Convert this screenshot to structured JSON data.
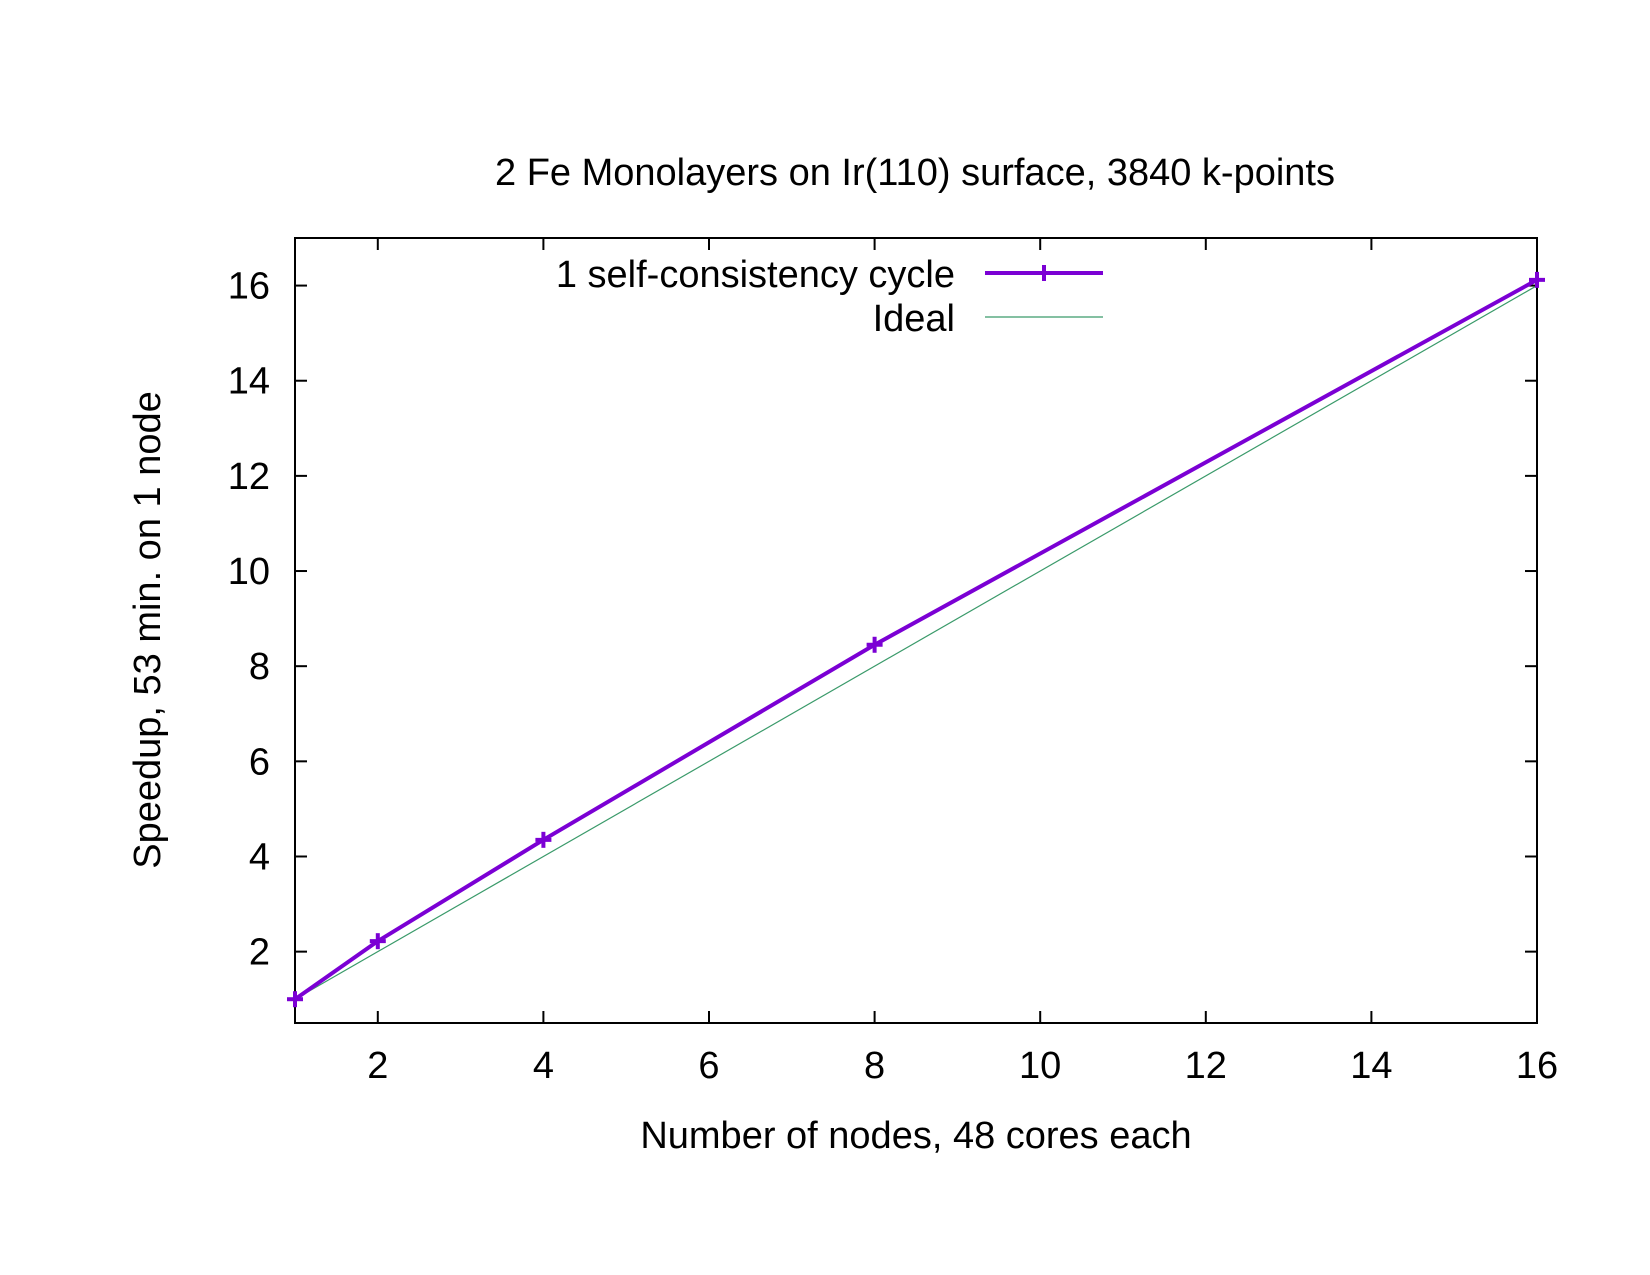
{
  "chart_data": {
    "type": "line",
    "title": "2 Fe Monolayers on Ir(110) surface, 3840 k-points",
    "xlabel": "Number of nodes, 48 cores each",
    "ylabel": "Speedup, 53 min. on 1 node",
    "xlim": [
      1,
      16
    ],
    "ylim": [
      0.5,
      17
    ],
    "xticks": [
      2,
      4,
      6,
      8,
      10,
      12,
      14,
      16
    ],
    "yticks": [
      2,
      4,
      6,
      8,
      10,
      12,
      14,
      16
    ],
    "legend_position": "top-center",
    "grid": false,
    "series": [
      {
        "name": "1 self-consistency cycle",
        "color": "#7b00d4",
        "marker": "plus",
        "x": [
          1,
          2,
          4,
          8,
          16
        ],
        "y": [
          1.0,
          2.22,
          4.35,
          8.45,
          16.12
        ]
      },
      {
        "name": "Ideal",
        "color": "#3a9a6a",
        "marker": "none",
        "x": [
          1,
          16
        ],
        "y": [
          1,
          16
        ]
      }
    ]
  }
}
